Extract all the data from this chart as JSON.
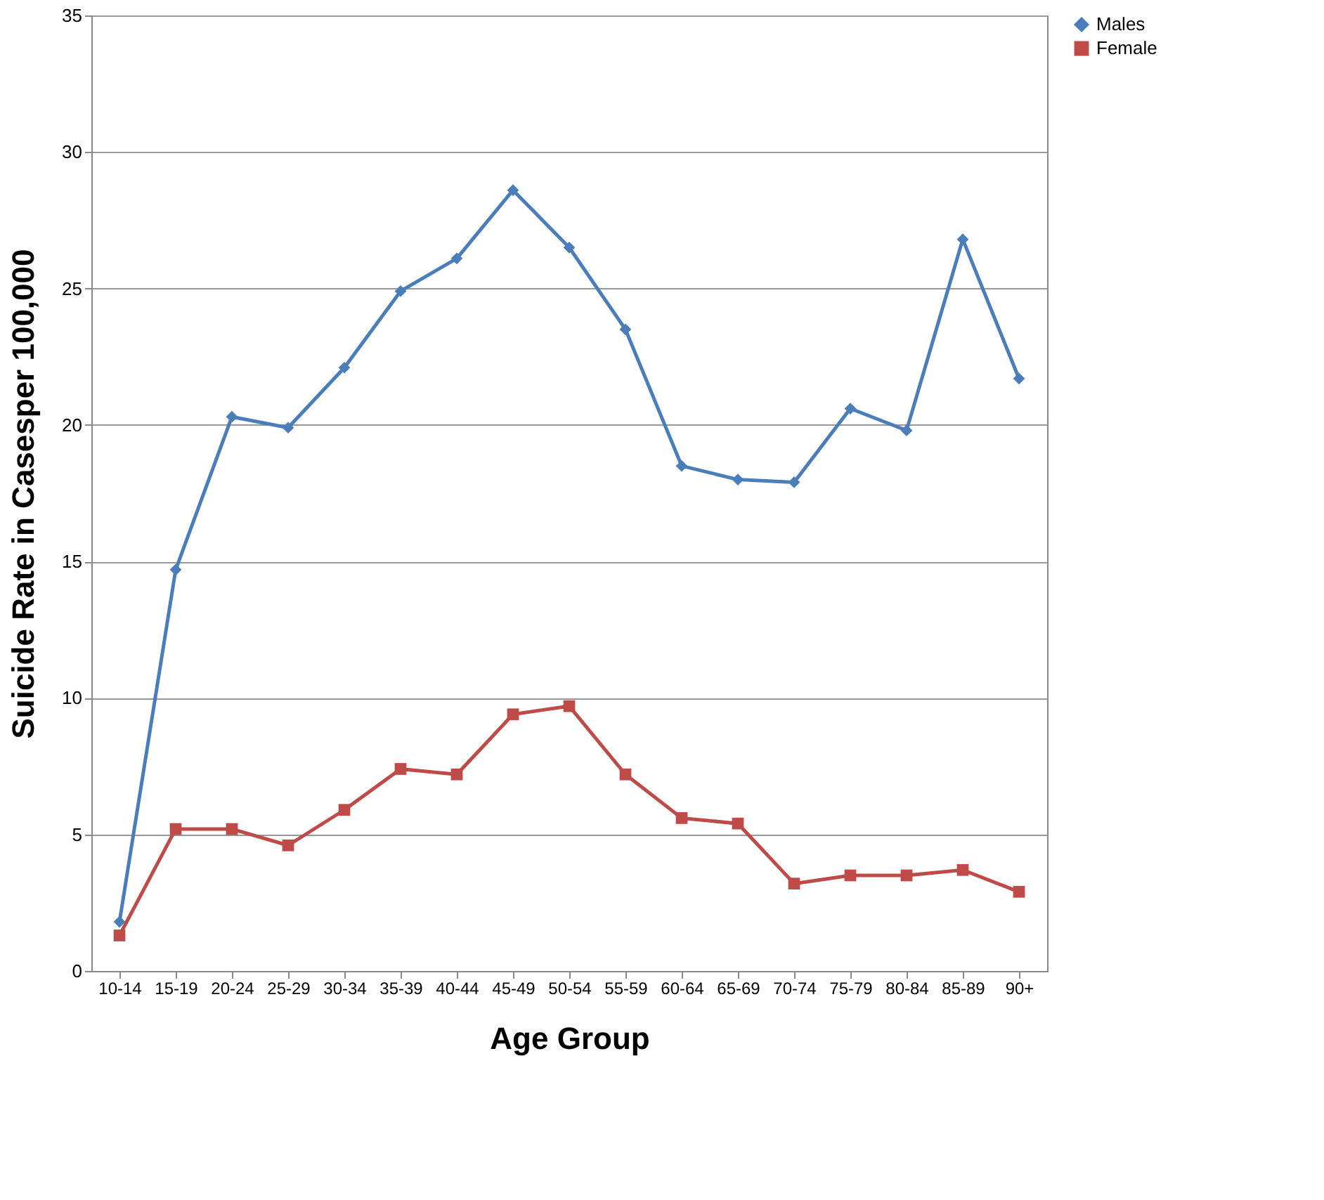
{
  "chart_data": {
    "type": "line",
    "xlabel": "Age Group",
    "ylabel": "Suicide Rate  in Casesper 100,000",
    "categories": [
      "10-14",
      "15-19",
      "20-24",
      "25-29",
      "30-34",
      "35-39",
      "40-44",
      "45-49",
      "50-54",
      "55-59",
      "60-64",
      "65-69",
      "70-74",
      "75-79",
      "80-84",
      "85-89",
      "90+"
    ],
    "series": [
      {
        "name": "Males",
        "color": "#4a7ebb",
        "marker": "diamond",
        "values": [
          1.8,
          14.7,
          20.3,
          19.9,
          22.1,
          24.9,
          26.1,
          28.6,
          26.5,
          23.5,
          18.5,
          18.0,
          17.9,
          20.6,
          19.8,
          26.8,
          21.7
        ]
      },
      {
        "name": "Female",
        "color": "#be4b48",
        "marker": "square",
        "values": [
          1.3,
          5.2,
          5.2,
          4.6,
          5.9,
          7.4,
          7.2,
          9.4,
          9.7,
          7.2,
          5.6,
          5.4,
          3.2,
          3.5,
          3.5,
          3.7,
          2.9
        ]
      }
    ],
    "ylim": [
      0,
      35
    ],
    "yticks": [
      0,
      5,
      10,
      15,
      20,
      25,
      30,
      35
    ],
    "grid": "y",
    "legend": "right",
    "line_style": "solid"
  }
}
